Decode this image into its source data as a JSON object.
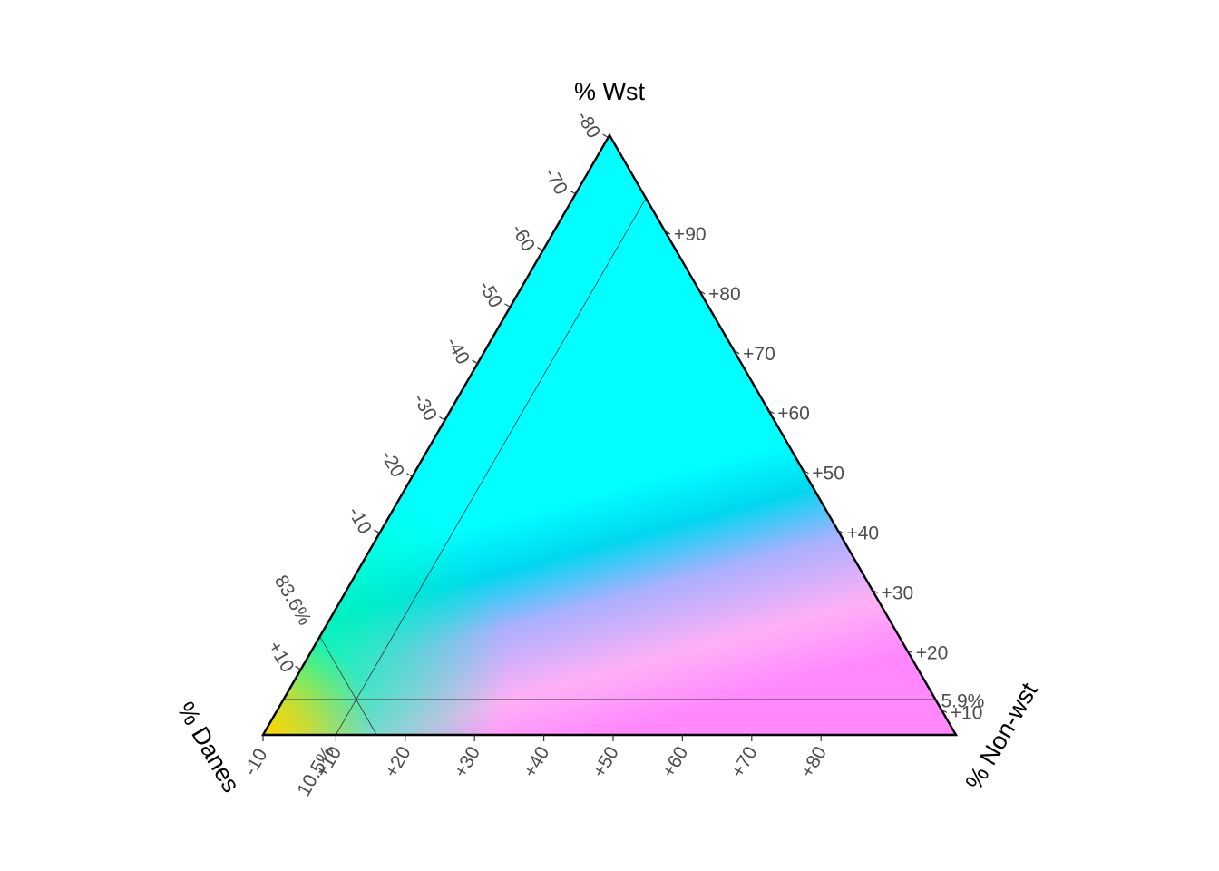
{
  "chart_data": {
    "type": "ternary",
    "axes": {
      "top": {
        "title": "% Wst",
        "ticks": [
          "+10",
          "+20",
          "+30",
          "+40",
          "+50",
          "+60",
          "+70",
          "+80",
          "+90"
        ],
        "reference_label": "5.9%"
      },
      "left": {
        "title": "% Danes",
        "ticks": [
          "-10",
          "-20",
          "-30",
          "-40",
          "-50",
          "-60",
          "-70",
          "-80"
        ],
        "reference_label": "83.6%"
      },
      "right": {
        "title": "% Non-wst",
        "ticks": [
          "-10",
          "+10",
          "+20",
          "+30",
          "+40",
          "+50",
          "+60",
          "+70",
          "+80"
        ],
        "reference_label": "10.5%"
      },
      "extra_left_tick": "+10"
    },
    "reference_point": {
      "danes": 83.6,
      "wst": 5.9,
      "non_wst": 10.5
    },
    "colors": {
      "wst": "#00ffff",
      "dane": "#ffd700",
      "nonwst": "#ff88ff",
      "mid": "#00d8f0",
      "green": "#00ffaa",
      "lilac": "#aab0ff",
      "pink": "#ffb0f5"
    }
  }
}
